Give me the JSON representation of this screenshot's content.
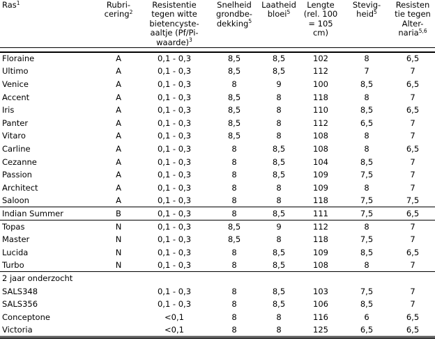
{
  "table": {
    "headers": [
      {
        "name": "ras",
        "lines": [
          "Ras"
        ],
        "sup": "1",
        "align": "left"
      },
      {
        "name": "rubricering",
        "lines": [
          "Rubri-",
          "cering"
        ],
        "sup": "2",
        "align": "center"
      },
      {
        "name": "resistentie-witte-bietencysteaaltje",
        "lines": [
          "Resistentie",
          "tegen witte",
          "bietencyste-",
          "aaltje (Pf/Pi-",
          "waarde)"
        ],
        "sup": "3",
        "align": "center"
      },
      {
        "name": "snelheid-grondbedekking",
        "lines": [
          "Snelheid",
          "grondbe-",
          "dekking"
        ],
        "sup": "5",
        "align": "center"
      },
      {
        "name": "laatheid-bloei",
        "lines": [
          "Laatheid",
          "bloei"
        ],
        "sup": "5",
        "align": "center"
      },
      {
        "name": "lengte",
        "lines": [
          "Lengte",
          "(rel. 100",
          "= 105",
          "cm)"
        ],
        "sup": "",
        "align": "center"
      },
      {
        "name": "stevigheid",
        "lines": [
          "Stevig-",
          "heid"
        ],
        "sup": "5",
        "align": "center"
      },
      {
        "name": "resistentie-alternaria",
        "lines": [
          "Resisten",
          "tie tegen",
          "Alter-",
          "naria"
        ],
        "sup": "5,6",
        "align": "center"
      }
    ],
    "rows": [
      {
        "type": "data",
        "cells": [
          "Floraine",
          "A",
          "0,1 - 0,3",
          "8,5",
          "8,5",
          "102",
          "8",
          "6,5"
        ],
        "rule_below": false
      },
      {
        "type": "data",
        "cells": [
          "Ultimo",
          "A",
          "0,1 - 0,3",
          "8,5",
          "8,5",
          "112",
          "7",
          "7"
        ],
        "rule_below": false
      },
      {
        "type": "data",
        "cells": [
          "Venice",
          "A",
          "0,1 - 0,3",
          "8",
          "9",
          "100",
          "8,5",
          "6,5"
        ],
        "rule_below": false
      },
      {
        "type": "data",
        "cells": [
          "Accent",
          "A",
          "0,1 - 0,3",
          "8,5",
          "8",
          "118",
          "8",
          "7"
        ],
        "rule_below": false
      },
      {
        "type": "data",
        "cells": [
          "Iris",
          "A",
          "0,1 - 0,3",
          "8,5",
          "8",
          "110",
          "8,5",
          "6,5"
        ],
        "rule_below": false
      },
      {
        "type": "data",
        "cells": [
          "Panter",
          "A",
          "0,1 - 0,3",
          "8,5",
          "8",
          "112",
          "6,5",
          "7"
        ],
        "rule_below": false
      },
      {
        "type": "data",
        "cells": [
          "Vitaro",
          "A",
          "0,1 - 0,3",
          "8,5",
          "8",
          "108",
          "8",
          "7"
        ],
        "rule_below": false
      },
      {
        "type": "data",
        "cells": [
          "Carline",
          "A",
          "0,1 - 0,3",
          "8",
          "8,5",
          "108",
          "8",
          "6,5"
        ],
        "rule_below": false
      },
      {
        "type": "data",
        "cells": [
          "Cezanne",
          "A",
          "0,1 - 0,3",
          "8",
          "8,5",
          "104",
          "8,5",
          "7"
        ],
        "rule_below": false
      },
      {
        "type": "data",
        "cells": [
          "Passion",
          "A",
          "0,1 - 0,3",
          "8",
          "8,5",
          "109",
          "7,5",
          "7"
        ],
        "rule_below": false
      },
      {
        "type": "data",
        "cells": [
          "Architect",
          "A",
          "0,1 - 0,3",
          "8",
          "8",
          "109",
          "8",
          "7"
        ],
        "rule_below": false
      },
      {
        "type": "data",
        "cells": [
          "Saloon",
          "A",
          "0,1 - 0,3",
          "8",
          "8",
          "118",
          "7,5",
          "7,5"
        ],
        "rule_below": true
      },
      {
        "type": "data",
        "cells": [
          "Indian Summer",
          "B",
          "0,1 - 0,3",
          "8",
          "8,5",
          "111",
          "7,5",
          "6,5"
        ],
        "rule_below": true
      },
      {
        "type": "data",
        "cells": [
          "Topas",
          "N",
          "0,1 - 0,3",
          "8,5",
          "9",
          "112",
          "8",
          "7"
        ],
        "rule_below": false
      },
      {
        "type": "data",
        "cells": [
          "Master",
          "N",
          "0,1 - 0,3",
          "8,5",
          "8",
          "118",
          "7,5",
          "7"
        ],
        "rule_below": false
      },
      {
        "type": "data",
        "cells": [
          "Lucida",
          "N",
          "0,1 - 0,3",
          "8",
          "8,5",
          "109",
          "8,5",
          "6,5"
        ],
        "rule_below": false
      },
      {
        "type": "data",
        "cells": [
          "Turbo",
          "N",
          "0,1 - 0,3",
          "8",
          "8,5",
          "108",
          "8",
          "7"
        ],
        "rule_below": true
      },
      {
        "type": "section",
        "label": "2 jaar onderzocht"
      },
      {
        "type": "data",
        "cells": [
          "SALS348",
          "",
          "0,1 - 0,3",
          "8",
          "8,5",
          "103",
          "7,5",
          "7"
        ],
        "rule_below": false
      },
      {
        "type": "data",
        "cells": [
          "SALS356",
          "",
          "0,1 - 0,3",
          "8",
          "8,5",
          "106",
          "8,5",
          "7"
        ],
        "rule_below": false
      },
      {
        "type": "data",
        "cells": [
          "Conceptone",
          "",
          "<0,1",
          "8",
          "8",
          "116",
          "6",
          "6,5"
        ],
        "rule_below": false
      },
      {
        "type": "data",
        "cells": [
          "Victoria",
          "",
          "<0,1",
          "8",
          "8",
          "125",
          "6,5",
          "6,5"
        ],
        "rule_below": false
      }
    ],
    "colors": {
      "text": "#000000",
      "background": "#ffffff",
      "rule": "#000000"
    }
  }
}
